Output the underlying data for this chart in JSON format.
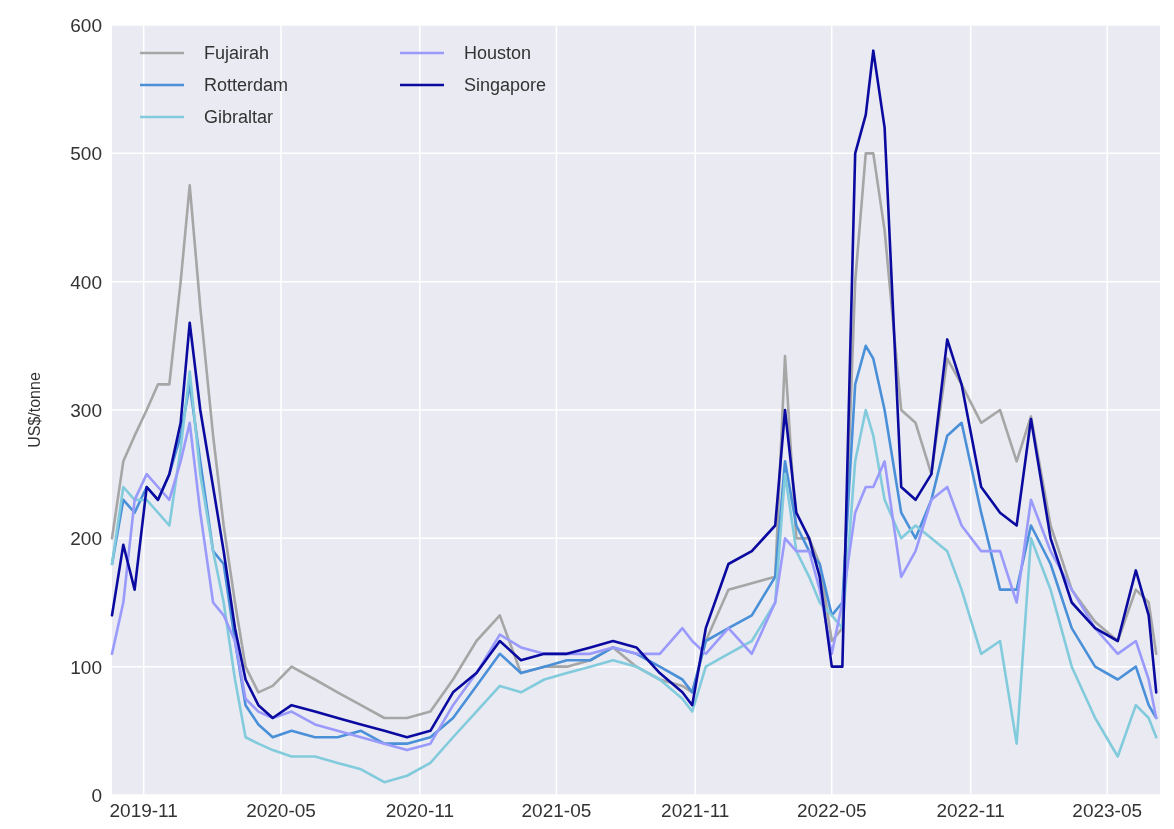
{
  "chart_data": {
    "type": "line",
    "ylabel": "US$/tonne",
    "x": [
      "2019-09-20",
      "2019-10-05",
      "2019-10-20",
      "2019-11-05",
      "2019-11-20",
      "2019-12-05",
      "2019-12-20",
      "2020-01-01",
      "2020-01-15",
      "2020-02-01",
      "2020-02-15",
      "2020-03-01",
      "2020-03-15",
      "2020-04-01",
      "2020-04-20",
      "2020-05-15",
      "2020-06-15",
      "2020-07-15",
      "2020-08-15",
      "2020-09-15",
      "2020-10-15",
      "2020-11-15",
      "2020-12-15",
      "2021-01-15",
      "2021-02-15",
      "2021-03-15",
      "2021-04-15",
      "2021-05-15",
      "2021-06-15",
      "2021-07-15",
      "2021-08-15",
      "2021-09-15",
      "2021-10-15",
      "2021-10-28",
      "2021-11-15",
      "2021-12-15",
      "2022-01-15",
      "2022-02-15",
      "2022-02-28",
      "2022-03-15",
      "2022-04-01",
      "2022-04-15",
      "2022-05-01",
      "2022-05-15",
      "2022-06-01",
      "2022-06-15",
      "2022-06-25",
      "2022-07-10",
      "2022-08-01",
      "2022-08-20",
      "2022-09-10",
      "2022-10-01",
      "2022-10-20",
      "2022-11-15",
      "2022-12-10",
      "2023-01-01",
      "2023-01-20",
      "2023-02-15",
      "2023-03-15",
      "2023-04-15",
      "2023-05-15",
      "2023-06-08",
      "2023-06-25",
      "2023-07-05"
    ],
    "series": [
      {
        "name": "Fujairah",
        "color": "#a6a6a6",
        "values": [
          200,
          260,
          280,
          300,
          320,
          320,
          400,
          475,
          380,
          280,
          210,
          150,
          100,
          80,
          85,
          100,
          90,
          80,
          70,
          60,
          60,
          65,
          90,
          120,
          140,
          95,
          100,
          100,
          105,
          115,
          100,
          90,
          85,
          80,
          120,
          160,
          165,
          170,
          342,
          200,
          200,
          180,
          120,
          130,
          400,
          500,
          500,
          440,
          300,
          290,
          250,
          340,
          320,
          290,
          300,
          260,
          295,
          210,
          160,
          135,
          120,
          160,
          150,
          110
        ]
      },
      {
        "name": "Rotterdam",
        "color": "#4a90d9",
        "values": [
          180,
          230,
          220,
          240,
          230,
          250,
          280,
          320,
          260,
          190,
          180,
          120,
          70,
          55,
          45,
          50,
          45,
          45,
          50,
          40,
          40,
          45,
          60,
          85,
          110,
          95,
          100,
          105,
          105,
          115,
          110,
          100,
          90,
          80,
          120,
          130,
          140,
          170,
          260,
          210,
          190,
          180,
          140,
          150,
          320,
          350,
          340,
          300,
          220,
          200,
          230,
          280,
          290,
          220,
          160,
          160,
          210,
          180,
          130,
          100,
          90,
          100,
          70,
          60
        ]
      },
      {
        "name": "Gibraltar",
        "color": "#82cbdc",
        "values": [
          180,
          240,
          230,
          230,
          220,
          210,
          270,
          330,
          250,
          190,
          150,
          90,
          45,
          40,
          35,
          30,
          30,
          25,
          20,
          10,
          15,
          25,
          45,
          65,
          85,
          80,
          90,
          95,
          100,
          105,
          100,
          90,
          75,
          65,
          100,
          110,
          120,
          150,
          250,
          190,
          170,
          150,
          140,
          130,
          260,
          300,
          280,
          230,
          200,
          210,
          200,
          190,
          160,
          110,
          120,
          40,
          200,
          160,
          100,
          60,
          30,
          70,
          60,
          45
        ]
      },
      {
        "name": "Houston",
        "color": "#9a9afc",
        "values": [
          110,
          150,
          230,
          250,
          240,
          230,
          260,
          290,
          220,
          150,
          140,
          120,
          75,
          65,
          60,
          65,
          55,
          50,
          45,
          40,
          35,
          40,
          70,
          95,
          125,
          115,
          110,
          110,
          110,
          115,
          110,
          110,
          130,
          120,
          110,
          130,
          110,
          150,
          200,
          190,
          190,
          160,
          110,
          150,
          220,
          240,
          240,
          260,
          170,
          190,
          230,
          240,
          210,
          190,
          190,
          150,
          230,
          190,
          160,
          130,
          110,
          120,
          90,
          60
        ]
      },
      {
        "name": "Singapore",
        "color": "#0a0aa0",
        "values": [
          140,
          195,
          160,
          240,
          230,
          250,
          290,
          368,
          300,
          240,
          190,
          130,
          90,
          70,
          60,
          70,
          65,
          60,
          55,
          50,
          45,
          50,
          80,
          95,
          120,
          105,
          110,
          110,
          115,
          120,
          115,
          95,
          80,
          70,
          130,
          180,
          190,
          210,
          300,
          220,
          200,
          170,
          100,
          100,
          500,
          530,
          580,
          520,
          240,
          230,
          250,
          355,
          320,
          240,
          220,
          210,
          293,
          200,
          150,
          130,
          120,
          175,
          140,
          80
        ]
      }
    ],
    "xlim": [
      "2019-09-20",
      "2023-07-10"
    ],
    "xticks": [
      "2019-11",
      "2020-05",
      "2020-11",
      "2021-05",
      "2021-11",
      "2022-05",
      "2022-11",
      "2023-05"
    ],
    "ylim": [
      0,
      600
    ],
    "yticks": [
      0,
      100,
      200,
      300,
      400,
      500,
      600
    ],
    "grid": true,
    "legend": "top left",
    "line_style": "solid",
    "marker": "none"
  }
}
